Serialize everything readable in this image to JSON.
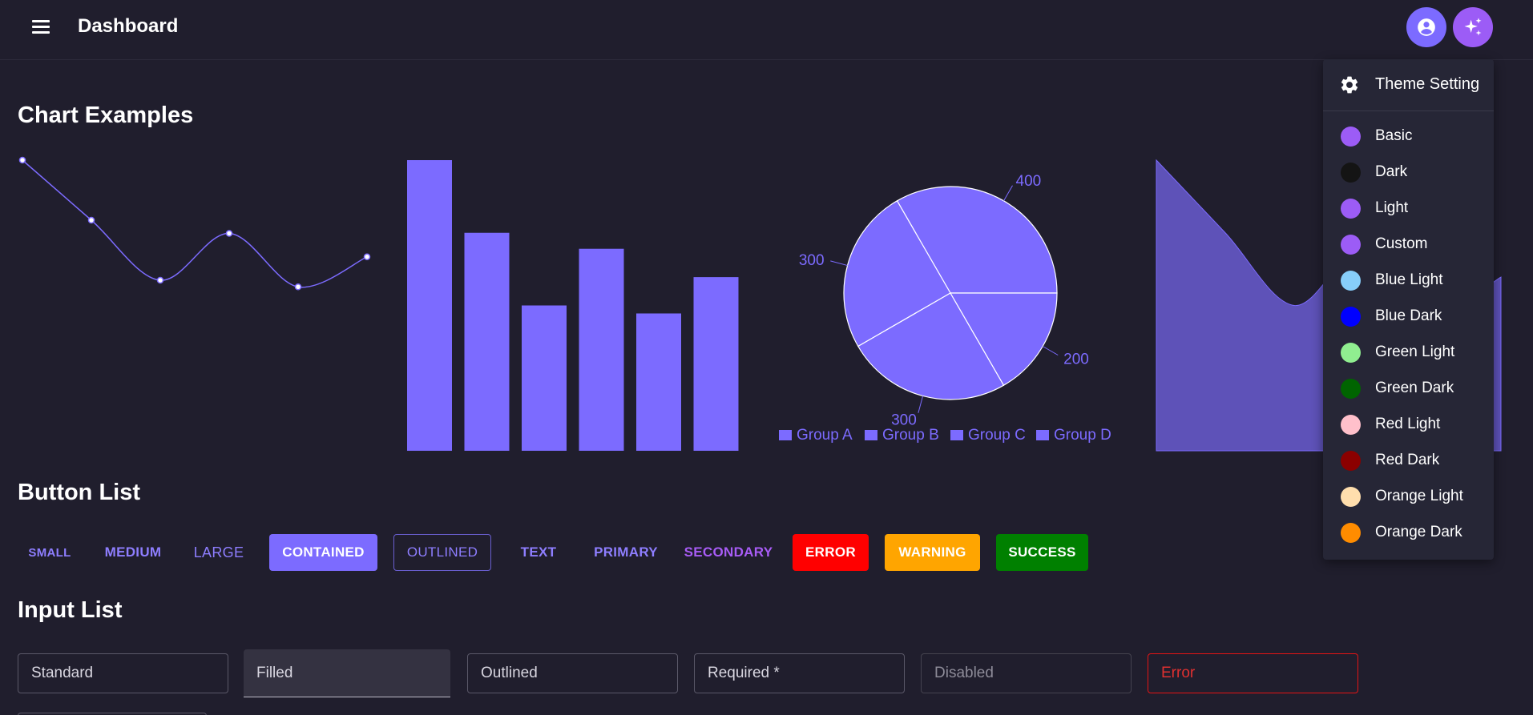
{
  "header": {
    "title": "Dashboard"
  },
  "sections": {
    "charts": "Chart Examples",
    "buttons": "Button List",
    "inputs": "Input List"
  },
  "colors": {
    "accent": "#7c6bff",
    "secondary": "#a85cf6",
    "background": "#201e2d"
  },
  "chart_data": [
    {
      "type": "line",
      "x": [
        0,
        1,
        2,
        3,
        4,
        5
      ],
      "values": [
        400,
        300,
        200,
        278,
        189,
        239
      ]
    },
    {
      "type": "bar",
      "values": [
        400,
        300,
        200,
        278,
        189,
        239
      ]
    },
    {
      "type": "pie",
      "series": [
        {
          "name": "Group A",
          "value": 400
        },
        {
          "name": "Group B",
          "value": 300
        },
        {
          "name": "Group C",
          "value": 300
        },
        {
          "name": "Group D",
          "value": 200
        }
      ],
      "data_labels": [
        "400",
        "300",
        "300",
        "200"
      ],
      "legend": "bottom"
    },
    {
      "type": "area",
      "values": [
        400,
        300,
        200,
        278,
        189,
        239
      ]
    }
  ],
  "buttons": {
    "small": "SMALL",
    "medium": "MEDIUM",
    "large": "LARGE",
    "contained": "CONTAINED",
    "outlined": "OUTLINED",
    "text": "TEXT",
    "primary": "PRIMARY",
    "secondary": "SECONDARY",
    "error": "ERROR",
    "warning": "WARNING",
    "success": "SUCCESS"
  },
  "inputs": {
    "standard": "Standard",
    "filled": "Filled",
    "outlined": "Outlined",
    "required": "Required *",
    "disabled": "Disabled",
    "error": "Error"
  },
  "theme_menu": {
    "header": "Theme Setting",
    "items": [
      {
        "label": "Basic",
        "color": "#9c5cf6"
      },
      {
        "label": "Dark",
        "color": "#141414"
      },
      {
        "label": "Light",
        "color": "#9c5cf6"
      },
      {
        "label": "Custom",
        "color": "#9c5cf6"
      },
      {
        "label": "Blue Light",
        "color": "#87cefa"
      },
      {
        "label": "Blue Dark",
        "color": "#0000ff"
      },
      {
        "label": "Green Light",
        "color": "#90ee90"
      },
      {
        "label": "Green Dark",
        "color": "#006400"
      },
      {
        "label": "Red Light",
        "color": "#ffc0cb"
      },
      {
        "label": "Red Dark",
        "color": "#8b0000"
      },
      {
        "label": "Orange Light",
        "color": "#ffdead"
      },
      {
        "label": "Orange Dark",
        "color": "#ff8c00"
      }
    ]
  }
}
